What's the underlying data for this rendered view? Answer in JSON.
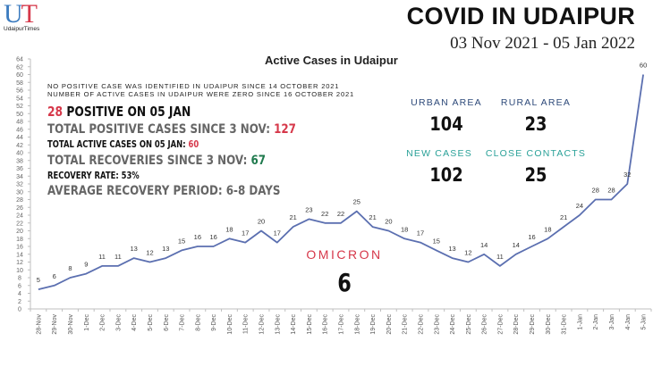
{
  "logo": {
    "letter1": "U",
    "letter2": "T",
    "subtitle": "UdaipurTimes"
  },
  "header": {
    "title": "COVID IN UDAIPUR",
    "date_range": "03 Nov 2021 - 05 Jan 2022"
  },
  "notes": {
    "line1": "NO POSITIVE CASE WAS IDENTIFIED IN UDAIPUR SINCE 14 OCTOBER 2021",
    "line2": "NUMBER OF ACTIVE CASES IN UDAIPUR WERE ZERO SINCE 16 OCTOBER 2021"
  },
  "stats": {
    "positive_today_value": "28",
    "positive_today_label": " POSITIVE ON 05 JAN",
    "total_positive_label": "TOTAL POSITIVE CASES SINCE 3 NOV: ",
    "total_positive_value": "127",
    "total_active_label": "TOTAL ACTIVE CASES ON 05 JAN: ",
    "total_active_value": "60",
    "total_recoveries_label": "TOTAL RECOVERIES SINCE 3 NOV: ",
    "total_recoveries_value": "67",
    "recovery_rate": "RECOVERY RATE: 53%",
    "avg_recovery_period": "AVERAGE RECOVERY PERIOD: 6-8 DAYS"
  },
  "boxes": {
    "urban": {
      "label": "URBAN AREA",
      "value": "104"
    },
    "rural": {
      "label": "RURAL AREA",
      "value": "23"
    },
    "new_cases": {
      "label": "NEW CASES",
      "value": "102"
    },
    "close_contacts": {
      "label": "CLOSE CONTACTS",
      "value": "25"
    }
  },
  "omicron": {
    "label": "OMICRON",
    "value": "6"
  },
  "colors": {
    "line": "#5b6fb0",
    "accent_red": "#d6384a",
    "accent_green": "#1f7a4d",
    "label_blue": "#2e4a7a",
    "label_teal": "#2aa198"
  },
  "chart_data": {
    "type": "line",
    "title": "Active Cases in Udaipur",
    "xlabel": "",
    "ylabel": "",
    "ylim": [
      0,
      64
    ],
    "ytick_step": 2,
    "grid": false,
    "legend": null,
    "categories": [
      "28-Nov",
      "29-Nov",
      "30-Nov",
      "1-Dec",
      "2-Dec",
      "3-Dec",
      "4-Dec",
      "5-Dec",
      "6-Dec",
      "7-Dec",
      "8-Dec",
      "9-Dec",
      "10-Dec",
      "11-Dec",
      "12-Dec",
      "13-Dec",
      "14-Dec",
      "15-Dec",
      "16-Dec",
      "17-Dec",
      "18-Dec",
      "19-Dec",
      "20-Dec",
      "21-Dec",
      "22-Dec",
      "23-Dec",
      "24-Dec",
      "25-Dec",
      "26-Dec",
      "27-Dec",
      "28-Dec",
      "29-Dec",
      "30-Dec",
      "31-Dec",
      "1-Jan",
      "2-Jan",
      "3-Jan",
      "4-Jan",
      "5-Jan"
    ],
    "series": [
      {
        "name": "Active Cases",
        "values": [
          5,
          6,
          8,
          9,
          11,
          11,
          13,
          12,
          13,
          15,
          16,
          16,
          18,
          17,
          20,
          17,
          21,
          23,
          22,
          22,
          25,
          21,
          20,
          18,
          17,
          15,
          13,
          12,
          14,
          11,
          14,
          16,
          18,
          21,
          24,
          28,
          28,
          32,
          60
        ]
      }
    ]
  }
}
